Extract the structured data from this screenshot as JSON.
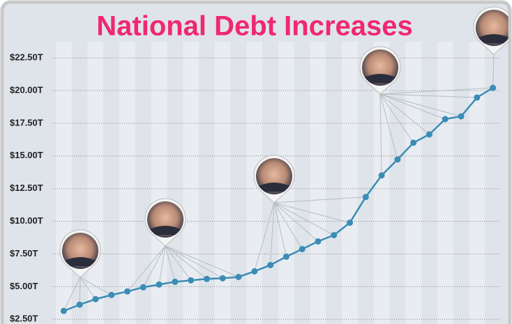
{
  "chart_data": {
    "type": "line",
    "title": "National Debt Increases",
    "categories": [
      null,
      null,
      null,
      null,
      null,
      null,
      null,
      null,
      null,
      null,
      null,
      null,
      null,
      null,
      null,
      null,
      null,
      null,
      null,
      null,
      null,
      null,
      null,
      null,
      null,
      null,
      null,
      null
    ],
    "series": [
      {
        "color": "#3a8db5",
        "values": [
          3.14,
          3.62,
          4.04,
          4.36,
          4.63,
          4.95,
          5.16,
          5.37,
          5.48,
          5.59,
          5.64,
          5.74,
          6.17,
          6.65,
          7.29,
          7.87,
          8.46,
          8.94,
          9.89,
          11.86,
          13.51,
          14.73,
          16.01,
          16.65,
          17.82,
          18.03,
          19.47,
          20.21
        ]
      }
    ],
    "ylim": [
      2.3,
      24.8
    ],
    "yticks": [
      {
        "value": 2.5,
        "label": "$2.50T"
      },
      {
        "value": 5,
        "label": "$5.00T"
      },
      {
        "value": 7.5,
        "label": "$7.50T"
      },
      {
        "value": 10,
        "label": "$10.00T"
      },
      {
        "value": 12.5,
        "label": "$12.50T"
      },
      {
        "value": 15,
        "label": "$15.00T"
      },
      {
        "value": 17.5,
        "label": "$17.50T"
      },
      {
        "value": 20,
        "label": "$20.00T"
      },
      {
        "value": 22.5,
        "label": "$22.50T"
      }
    ],
    "grid": true
  }
}
